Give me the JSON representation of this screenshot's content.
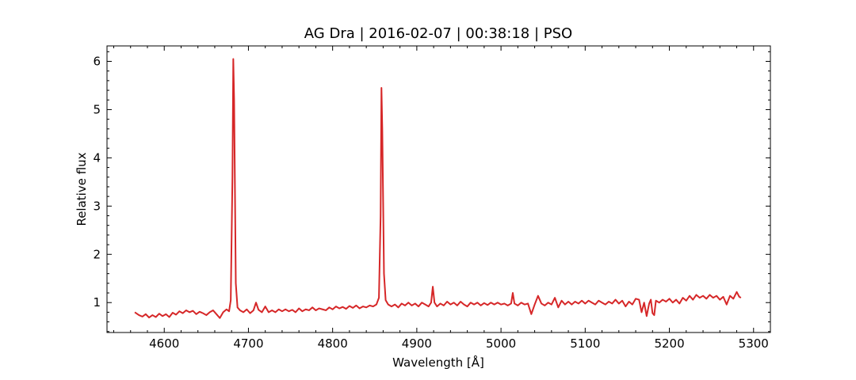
{
  "chart_data": {
    "type": "line",
    "title": "AG Dra | 2016-02-07 | 00:38:18 | PSO",
    "xlabel": "Wavelength [Å]",
    "ylabel": "Relative flux",
    "xlim": [
      4532,
      5320
    ],
    "ylim": [
      0.38,
      6.32
    ],
    "xticks": [
      4600,
      4700,
      4800,
      4900,
      5000,
      5100,
      5200,
      5300
    ],
    "yticks": [
      1,
      2,
      3,
      4,
      5,
      6
    ],
    "xminor_step": 20,
    "yminor_step": 0.2,
    "grid": false,
    "line_color": "#d62728",
    "series": [
      {
        "points": [
          [
            4565,
            0.8
          ],
          [
            4570,
            0.74
          ],
          [
            4574,
            0.71
          ],
          [
            4578,
            0.76
          ],
          [
            4582,
            0.69
          ],
          [
            4586,
            0.74
          ],
          [
            4590,
            0.7
          ],
          [
            4594,
            0.77
          ],
          [
            4598,
            0.72
          ],
          [
            4602,
            0.76
          ],
          [
            4606,
            0.7
          ],
          [
            4610,
            0.79
          ],
          [
            4614,
            0.75
          ],
          [
            4618,
            0.82
          ],
          [
            4622,
            0.78
          ],
          [
            4626,
            0.84
          ],
          [
            4630,
            0.8
          ],
          [
            4634,
            0.83
          ],
          [
            4638,
            0.76
          ],
          [
            4642,
            0.81
          ],
          [
            4646,
            0.78
          ],
          [
            4650,
            0.74
          ],
          [
            4654,
            0.8
          ],
          [
            4658,
            0.84
          ],
          [
            4662,
            0.76
          ],
          [
            4666,
            0.68
          ],
          [
            4670,
            0.8
          ],
          [
            4674,
            0.86
          ],
          [
            4677,
            0.82
          ],
          [
            4679,
            1.05
          ],
          [
            4681,
            3.6
          ],
          [
            4682,
            6.05
          ],
          [
            4683,
            5.2
          ],
          [
            4685,
            1.4
          ],
          [
            4687,
            0.9
          ],
          [
            4690,
            0.84
          ],
          [
            4694,
            0.8
          ],
          [
            4698,
            0.86
          ],
          [
            4702,
            0.78
          ],
          [
            4706,
            0.84
          ],
          [
            4709,
            1.0
          ],
          [
            4712,
            0.85
          ],
          [
            4716,
            0.8
          ],
          [
            4720,
            0.92
          ],
          [
            4724,
            0.8
          ],
          [
            4728,
            0.84
          ],
          [
            4732,
            0.8
          ],
          [
            4736,
            0.86
          ],
          [
            4740,
            0.82
          ],
          [
            4744,
            0.86
          ],
          [
            4748,
            0.82
          ],
          [
            4752,
            0.85
          ],
          [
            4756,
            0.8
          ],
          [
            4760,
            0.88
          ],
          [
            4764,
            0.82
          ],
          [
            4768,
            0.86
          ],
          [
            4772,
            0.84
          ],
          [
            4776,
            0.9
          ],
          [
            4780,
            0.84
          ],
          [
            4784,
            0.88
          ],
          [
            4788,
            0.86
          ],
          [
            4792,
            0.84
          ],
          [
            4796,
            0.9
          ],
          [
            4800,
            0.86
          ],
          [
            4804,
            0.92
          ],
          [
            4808,
            0.88
          ],
          [
            4812,
            0.91
          ],
          [
            4816,
            0.87
          ],
          [
            4820,
            0.93
          ],
          [
            4824,
            0.89
          ],
          [
            4828,
            0.94
          ],
          [
            4832,
            0.88
          ],
          [
            4836,
            0.92
          ],
          [
            4840,
            0.9
          ],
          [
            4844,
            0.94
          ],
          [
            4848,
            0.92
          ],
          [
            4852,
            0.96
          ],
          [
            4855,
            1.1
          ],
          [
            4857,
            2.8
          ],
          [
            4858,
            5.45
          ],
          [
            4859,
            4.6
          ],
          [
            4861,
            1.6
          ],
          [
            4863,
            1.05
          ],
          [
            4866,
            0.96
          ],
          [
            4870,
            0.92
          ],
          [
            4874,
            0.96
          ],
          [
            4878,
            0.9
          ],
          [
            4882,
            0.98
          ],
          [
            4886,
            0.94
          ],
          [
            4890,
            1.0
          ],
          [
            4894,
            0.94
          ],
          [
            4898,
            0.98
          ],
          [
            4902,
            0.92
          ],
          [
            4906,
            1.0
          ],
          [
            4910,
            0.96
          ],
          [
            4914,
            0.92
          ],
          [
            4917,
            1.0
          ],
          [
            4919,
            1.33
          ],
          [
            4921,
            1.0
          ],
          [
            4924,
            0.92
          ],
          [
            4928,
            0.98
          ],
          [
            4932,
            0.94
          ],
          [
            4936,
            1.02
          ],
          [
            4940,
            0.96
          ],
          [
            4944,
            1.0
          ],
          [
            4948,
            0.94
          ],
          [
            4952,
            1.02
          ],
          [
            4956,
            0.96
          ],
          [
            4960,
            0.92
          ],
          [
            4964,
            1.0
          ],
          [
            4968,
            0.96
          ],
          [
            4972,
            1.0
          ],
          [
            4976,
            0.94
          ],
          [
            4980,
            0.99
          ],
          [
            4984,
            0.95
          ],
          [
            4988,
            1.0
          ],
          [
            4992,
            0.96
          ],
          [
            4996,
            1.0
          ],
          [
            5000,
            0.96
          ],
          [
            5004,
            0.98
          ],
          [
            5008,
            0.94
          ],
          [
            5012,
            0.98
          ],
          [
            5014,
            1.2
          ],
          [
            5016,
            0.98
          ],
          [
            5020,
            0.94
          ],
          [
            5024,
            1.0
          ],
          [
            5028,
            0.96
          ],
          [
            5032,
            0.98
          ],
          [
            5036,
            0.76
          ],
          [
            5040,
            0.96
          ],
          [
            5044,
            1.14
          ],
          [
            5048,
            0.98
          ],
          [
            5052,
            0.94
          ],
          [
            5056,
            1.0
          ],
          [
            5060,
            0.96
          ],
          [
            5064,
            1.1
          ],
          [
            5068,
            0.9
          ],
          [
            5072,
            1.04
          ],
          [
            5076,
            0.96
          ],
          [
            5080,
            1.02
          ],
          [
            5084,
            0.96
          ],
          [
            5088,
            1.02
          ],
          [
            5092,
            0.98
          ],
          [
            5096,
            1.04
          ],
          [
            5100,
            0.98
          ],
          [
            5104,
            1.04
          ],
          [
            5108,
            1.0
          ],
          [
            5112,
            0.96
          ],
          [
            5116,
            1.04
          ],
          [
            5120,
            1.0
          ],
          [
            5124,
            0.96
          ],
          [
            5128,
            1.02
          ],
          [
            5132,
            0.98
          ],
          [
            5136,
            1.06
          ],
          [
            5140,
            0.98
          ],
          [
            5144,
            1.04
          ],
          [
            5148,
            0.92
          ],
          [
            5152,
            1.02
          ],
          [
            5156,
            0.96
          ],
          [
            5160,
            1.08
          ],
          [
            5164,
            1.06
          ],
          [
            5167,
            0.8
          ],
          [
            5170,
            1.0
          ],
          [
            5173,
            0.72
          ],
          [
            5176,
            0.98
          ],
          [
            5178,
            1.06
          ],
          [
            5180,
            0.78
          ],
          [
            5182,
            0.74
          ],
          [
            5184,
            1.04
          ],
          [
            5188,
            1.0
          ],
          [
            5192,
            1.06
          ],
          [
            5196,
            1.02
          ],
          [
            5200,
            1.08
          ],
          [
            5204,
            1.0
          ],
          [
            5208,
            1.06
          ],
          [
            5212,
            0.98
          ],
          [
            5216,
            1.1
          ],
          [
            5220,
            1.04
          ],
          [
            5224,
            1.14
          ],
          [
            5228,
            1.06
          ],
          [
            5232,
            1.16
          ],
          [
            5236,
            1.1
          ],
          [
            5240,
            1.14
          ],
          [
            5244,
            1.08
          ],
          [
            5248,
            1.16
          ],
          [
            5252,
            1.1
          ],
          [
            5256,
            1.14
          ],
          [
            5260,
            1.06
          ],
          [
            5264,
            1.12
          ],
          [
            5268,
            0.96
          ],
          [
            5272,
            1.14
          ],
          [
            5276,
            1.08
          ],
          [
            5280,
            1.22
          ],
          [
            5283,
            1.12
          ],
          [
            5285,
            1.1
          ]
        ]
      }
    ]
  }
}
